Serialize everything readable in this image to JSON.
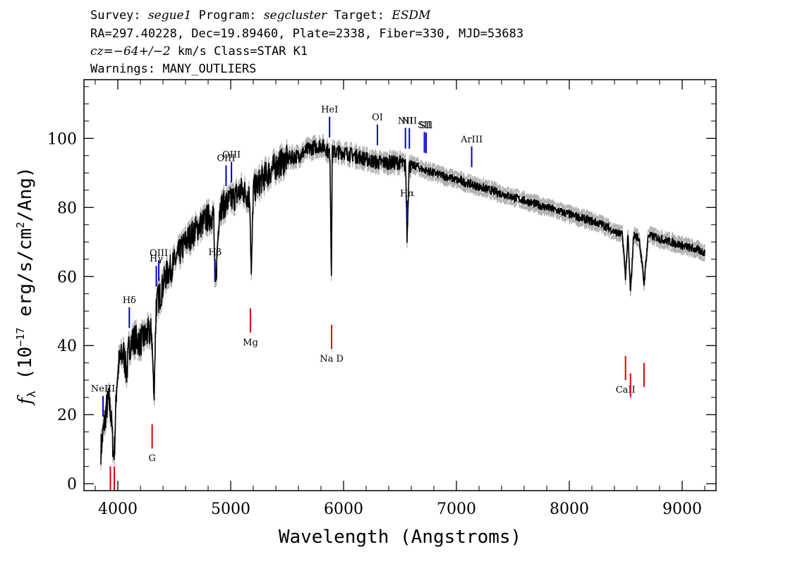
{
  "header": {
    "line1": {
      "survey_label": "Survey:",
      "survey": "segue1",
      "program_label": "Program:",
      "program": "segcluster",
      "target_label": "Target:",
      "target": "ESDM"
    },
    "line2": "RA=297.40228, Dec=19.89460, Plate=2338, Fiber=330, MJD=53683",
    "line3": {
      "cz": "cz=−64+/−2",
      "rest": "km/s Class=STAR K1"
    },
    "line4": "Warnings: MANY_OUTLIERS"
  },
  "chart_data": {
    "type": "line",
    "xlabel": "Wavelength (Angstroms)",
    "ylabel": "f_λ (10^-17 erg/s/cm^2/Ang)",
    "xlim": [
      3700,
      9300
    ],
    "ylim": [
      -2,
      117
    ],
    "x_ticks": [
      4000,
      5000,
      6000,
      7000,
      8000,
      9000
    ],
    "y_ticks": [
      0,
      20,
      40,
      60,
      80,
      100
    ],
    "colors": {
      "spectrum": "#000000",
      "error": "#b0b0b0",
      "emission": "#0000cc",
      "absorption": "#dd0000"
    },
    "series": [
      {
        "x": [
          3850,
          3880,
          3900,
          3920,
          3940,
          3960,
          3970,
          3990,
          4010,
          4050,
          4080,
          4100,
          4150,
          4200,
          4250,
          4300,
          4320,
          4340,
          4380,
          4420,
          4500,
          4600,
          4700,
          4800,
          4850,
          4861,
          4900,
          5000,
          5100,
          5170,
          5183,
          5200,
          5300,
          5400,
          5500,
          5600,
          5700,
          5800,
          5850,
          5880,
          5892,
          5900,
          5950,
          6000,
          6100,
          6200,
          6300,
          6400,
          6500,
          6550,
          6563,
          6580,
          6650,
          6700,
          6800,
          6900,
          7000,
          7100,
          7200,
          7300,
          7400,
          7500,
          7600,
          7700,
          7800,
          7900,
          8000,
          8100,
          8200,
          8300,
          8400,
          8470,
          8498,
          8520,
          8542,
          8570,
          8620,
          8662,
          8700,
          8800,
          8900,
          9000,
          9100,
          9200
        ],
        "y": [
          10,
          17,
          22,
          24,
          20,
          9,
          10,
          29,
          35,
          38,
          32,
          40,
          42,
          41,
          43,
          44,
          25,
          52,
          55,
          60,
          64,
          70,
          74,
          77,
          78,
          54,
          80,
          82,
          85,
          83,
          59,
          85,
          89,
          92,
          94,
          95,
          97,
          98,
          97,
          95,
          60,
          96,
          96,
          96,
          95,
          94,
          93,
          93,
          93,
          92,
          71,
          92,
          92,
          91,
          90,
          89,
          88,
          87,
          86,
          85,
          84,
          83,
          82,
          81,
          80,
          79,
          78,
          77,
          76,
          75,
          73,
          72,
          60,
          72,
          55,
          72,
          71,
          58,
          72,
          71,
          70,
          69,
          68,
          67
        ]
      }
    ],
    "emission_lines": [
      {
        "name": "NeIII",
        "x": 3869
      },
      {
        "name": "Hδ",
        "x": 4102
      },
      {
        "name": "Hγ",
        "x": 4341
      },
      {
        "name": "OIII",
        "x": 4363
      },
      {
        "name": "Hβ",
        "x": 4861
      },
      {
        "name": "OIII",
        "x": 4959
      },
      {
        "name": "OIII",
        "x": 5007
      },
      {
        "name": "HeI",
        "x": 5876
      },
      {
        "name": "OI",
        "x": 6300
      },
      {
        "name": "NII",
        "x": 6548
      },
      {
        "name": "Hα",
        "x": 6563
      },
      {
        "name": "NII",
        "x": 6583
      },
      {
        "name": "SII",
        "x": 6716
      },
      {
        "name": "SII",
        "x": 6731
      },
      {
        "name": "ArIII",
        "x": 7135
      }
    ],
    "absorption_lines": [
      {
        "name": "",
        "x": 3934
      },
      {
        "name": "",
        "x": 3969
      },
      {
        "name": "G",
        "x": 4304
      },
      {
        "name": "Mg",
        "x": 5175
      },
      {
        "name": "Na D",
        "x": 5894
      },
      {
        "name": "CaII",
        "x": 8498
      },
      {
        "name": "CaII",
        "x": 8542
      },
      {
        "name": "CaII",
        "x": 8662
      }
    ]
  }
}
